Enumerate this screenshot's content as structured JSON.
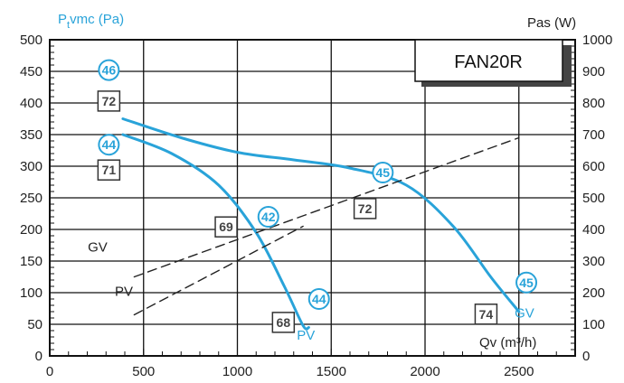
{
  "chart_data": {
    "type": "line",
    "title": "FAN20R",
    "ylabel_left": "P",
    "ylabel_left_sub": "t",
    "ylabel_left_rest": "vmc (Pa)",
    "ylabel_right": "Pas (W)",
    "xlabel": "Qv (m³/h)",
    "xlim": [
      0,
      2800
    ],
    "ylim_left": [
      0,
      500
    ],
    "ylim_right": [
      0,
      1000
    ],
    "x_ticks": [
      0,
      500,
      1000,
      1500,
      2000,
      2500
    ],
    "y_left_ticks": [
      0,
      50,
      100,
      150,
      200,
      250,
      300,
      350,
      400,
      450,
      500
    ],
    "y_right_ticks": [
      0,
      100,
      200,
      300,
      400,
      500,
      600,
      700,
      800,
      900,
      1000
    ],
    "grid": true,
    "colors": {
      "pressure": "#29a3d9",
      "power": "#222222",
      "frame": "#111111"
    },
    "series": [
      {
        "name": "GV",
        "kind": "pressure",
        "x": [
          390,
          700,
          1000,
          1300,
          1600,
          1900,
          2150,
          2350,
          2500
        ],
        "y": [
          375,
          345,
          322,
          310,
          297,
          270,
          205,
          125,
          70
        ]
      },
      {
        "name": "PV",
        "kind": "pressure",
        "x": [
          390,
          650,
          900,
          1100,
          1250,
          1350,
          1380
        ],
        "y": [
          350,
          320,
          270,
          195,
          110,
          48,
          45
        ]
      },
      {
        "name": "GV",
        "kind": "power",
        "x": [
          450,
          2500
        ],
        "y": [
          250,
          690
        ]
      },
      {
        "name": "PV",
        "kind": "power",
        "x": [
          450,
          1350
        ],
        "y": [
          130,
          410
        ]
      }
    ],
    "circle_labels": [
      {
        "text": "46",
        "x": 315,
        "y": 452
      },
      {
        "text": "44",
        "x": 315,
        "y": 334
      },
      {
        "text": "42",
        "x": 1165,
        "y": 220
      },
      {
        "text": "44",
        "x": 1435,
        "y": 90
      },
      {
        "text": "45",
        "x": 1775,
        "y": 290
      },
      {
        "text": "45",
        "x": 2540,
        "y": 116
      }
    ],
    "box_labels": [
      {
        "text": "72",
        "x": 315,
        "y": 403
      },
      {
        "text": "71",
        "x": 315,
        "y": 294
      },
      {
        "text": "69",
        "x": 940,
        "y": 204
      },
      {
        "text": "72",
        "x": 1680,
        "y": 233
      },
      {
        "text": "68",
        "x": 1245,
        "y": 53
      },
      {
        "text": "74",
        "x": 2325,
        "y": 66
      }
    ],
    "curve_labels": [
      {
        "text": "GV",
        "x": 255,
        "y": 172,
        "color": "#222222"
      },
      {
        "text": "PV",
        "x": 395,
        "y": 102,
        "color": "#222222"
      },
      {
        "text": "PV",
        "x": 1365,
        "y": 33,
        "color": "#29a3d9"
      },
      {
        "text": "GV",
        "x": 2530,
        "y": 68,
        "color": "#29a3d9"
      }
    ]
  }
}
